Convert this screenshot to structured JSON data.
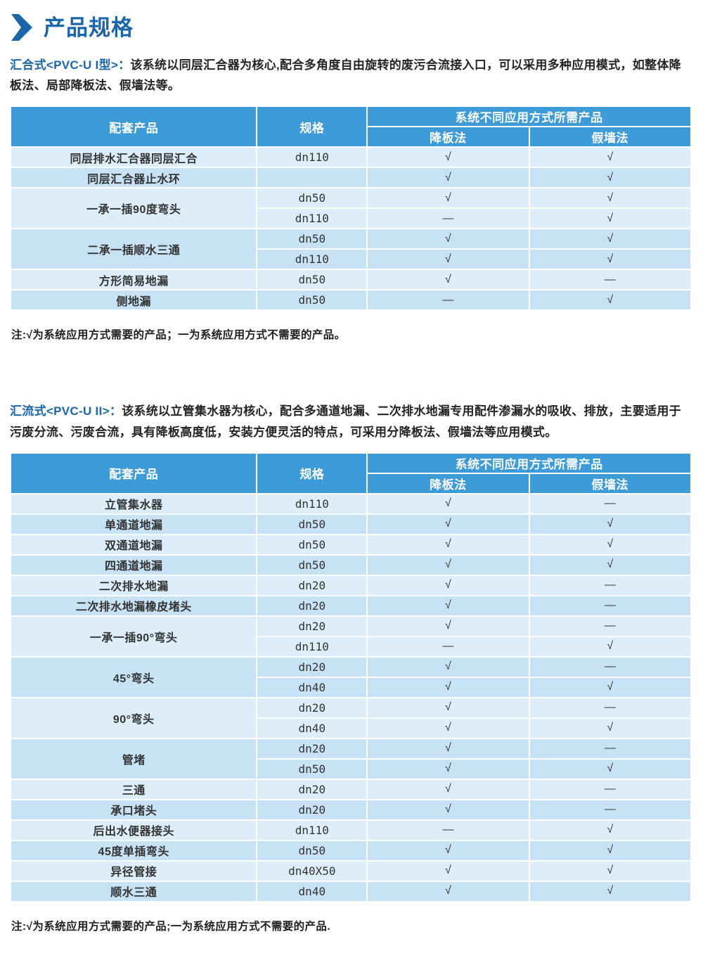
{
  "page": {
    "title": "产品规格"
  },
  "colors": {
    "accent": "#1b65ab",
    "table_header": "#3d9bd7",
    "row_light": "#ddeefa",
    "row_dark": "#c8e2f5"
  },
  "sections": [
    {
      "intro_lead": "汇合式<PVC-U I型>：",
      "intro_text": "该系统以同层汇合器为核心,配合多角度自由旋转的废污合流接入口，可以采用多种应用模式，如整体降板法、局部降板法、假墙法等。",
      "table": {
        "col_product": "配套产品",
        "col_spec": "规格",
        "col_group": "系统不同应用方式所需产品",
        "col_method1": "降板法",
        "col_method2": "假墙法",
        "groups": [
          {
            "product": "同层排水汇合器同层汇合",
            "rows": [
              {
                "spec": "dn110",
                "m1": "√",
                "m2": "√"
              }
            ]
          },
          {
            "product": "同层汇合器止水环",
            "rows": [
              {
                "spec": "",
                "m1": "√",
                "m2": "√"
              }
            ]
          },
          {
            "product": "一承一插90度弯头",
            "rows": [
              {
                "spec": "dn50",
                "m1": "√",
                "m2": "√"
              },
              {
                "spec": "dn110",
                "m1": "—",
                "m2": "√"
              }
            ]
          },
          {
            "product": "二承一插顺水三通",
            "rows": [
              {
                "spec": "dn50",
                "m1": "√",
                "m2": "√"
              },
              {
                "spec": "dn110",
                "m1": "√",
                "m2": "√"
              }
            ]
          },
          {
            "product": "方形简易地漏",
            "rows": [
              {
                "spec": "dn50",
                "m1": "√",
                "m2": "—"
              }
            ]
          },
          {
            "product": "侧地漏",
            "rows": [
              {
                "spec": "dn50",
                "m1": "—",
                "m2": "√"
              }
            ]
          }
        ]
      },
      "note": "注:√为系统应用方式需要的产品；一为系统应用方式不需要的产品。"
    },
    {
      "intro_lead": "汇流式<PVC-U II>：",
      "intro_text": "该系统以立管集水器为核心，配合多通道地漏、二次排水地漏专用配件渗漏水的吸收、排放，主要适用于污废分流、污废合流，具有降板高度低，安装方便灵活的特点，可采用分降板法、假墙法等应用模式。",
      "table": {
        "col_product": "配套产品",
        "col_spec": "规格",
        "col_group": "系统不同应用方式所需产品",
        "col_method1": "降板法",
        "col_method2": "假墙法",
        "groups": [
          {
            "product": "立管集水器",
            "rows": [
              {
                "spec": "dn110",
                "m1": "√",
                "m2": "—"
              }
            ]
          },
          {
            "product": "单通道地漏",
            "rows": [
              {
                "spec": "dn50",
                "m1": "√",
                "m2": "√"
              }
            ]
          },
          {
            "product": "双通道地漏",
            "rows": [
              {
                "spec": "dn50",
                "m1": "√",
                "m2": "√"
              }
            ]
          },
          {
            "product": "四通道地漏",
            "rows": [
              {
                "spec": "dn50",
                "m1": "√",
                "m2": "√"
              }
            ]
          },
          {
            "product": "二次排水地漏",
            "rows": [
              {
                "spec": "dn20",
                "m1": "√",
                "m2": "—"
              }
            ]
          },
          {
            "product": "二次排水地漏橡皮堵头",
            "rows": [
              {
                "spec": "dn20",
                "m1": "√",
                "m2": "—"
              }
            ]
          },
          {
            "product": "一承一插90°弯头",
            "rows": [
              {
                "spec": "dn20",
                "m1": "√",
                "m2": "—"
              },
              {
                "spec": "dn110",
                "m1": "—",
                "m2": "√"
              }
            ]
          },
          {
            "product": "45°弯头",
            "rows": [
              {
                "spec": "dn20",
                "m1": "√",
                "m2": "—"
              },
              {
                "spec": "dn40",
                "m1": "√",
                "m2": "√"
              }
            ]
          },
          {
            "product": "90°弯头",
            "rows": [
              {
                "spec": "dn20",
                "m1": "√",
                "m2": "—"
              },
              {
                "spec": "dn40",
                "m1": "√",
                "m2": "√"
              }
            ]
          },
          {
            "product": "管堵",
            "rows": [
              {
                "spec": "dn20",
                "m1": "√",
                "m2": "—"
              },
              {
                "spec": "dn50",
                "m1": "√",
                "m2": "√"
              }
            ]
          },
          {
            "product": "三通",
            "rows": [
              {
                "spec": "dn20",
                "m1": "√",
                "m2": "—"
              }
            ]
          },
          {
            "product": "承口堵头",
            "rows": [
              {
                "spec": "dn20",
                "m1": "√",
                "m2": "—"
              }
            ]
          },
          {
            "product": "后出水便器接头",
            "rows": [
              {
                "spec": "dn110",
                "m1": "—",
                "m2": "√"
              }
            ]
          },
          {
            "product": "45度单插弯头",
            "rows": [
              {
                "spec": "dn50",
                "m1": "√",
                "m2": "√"
              }
            ]
          },
          {
            "product": "异径管接",
            "rows": [
              {
                "spec": "dn40X50",
                "m1": "√",
                "m2": "√"
              }
            ]
          },
          {
            "product": "顺水三通",
            "rows": [
              {
                "spec": "dn40",
                "m1": "√",
                "m2": "√"
              }
            ]
          }
        ]
      },
      "note": "注:√为系统应用方式需要的产品;一为系统应用方式不需要的产品."
    }
  ]
}
